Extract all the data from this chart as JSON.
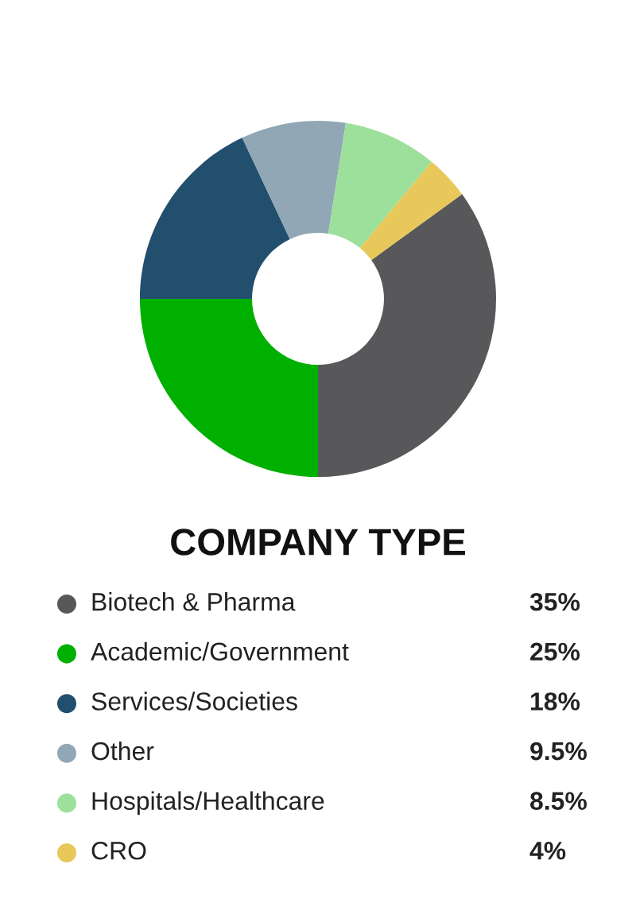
{
  "chart_data": {
    "type": "donut",
    "title": "COMPANY TYPE",
    "categories": [
      "Biotech & Pharma",
      "Academic/Government",
      "Services/Societies",
      "Other",
      "Hospitals/Healthcare",
      "CRO"
    ],
    "values": [
      35,
      25,
      18,
      9.5,
      8.5,
      4
    ],
    "colors": [
      "#58585a",
      "#00b000",
      "#234f6e",
      "#91a7b5",
      "#9de09b",
      "#e8c85a"
    ],
    "value_labels": [
      "35%",
      "25%",
      "18%",
      "9.5%",
      "8.5%",
      "4%"
    ],
    "legend": "bottom"
  }
}
